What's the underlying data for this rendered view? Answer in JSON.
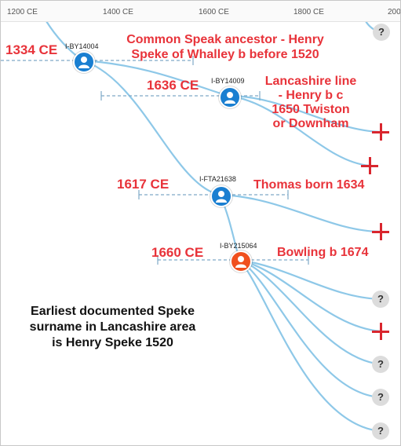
{
  "axis": {
    "ticks": [
      "1200 CE",
      "1400 CE",
      "1600 CE",
      "1800 CE",
      "200"
    ]
  },
  "nodes": [
    {
      "id": "I-BY14004",
      "color": "#1a7fd1"
    },
    {
      "id": "I-BY14009",
      "color": "#1a7fd1"
    },
    {
      "id": "I-FTA21638",
      "color": "#1a7fd1"
    },
    {
      "id": "I-BY215064",
      "color": "#f0501e"
    }
  ],
  "dates": [
    "1334 CE",
    "1636 CE",
    "1617 CE",
    "1660 CE"
  ],
  "annotations": {
    "common_ancestor": [
      "Common Speak ancestor - Henry",
      "Speke of Whalley b before 1520"
    ],
    "lancashire_line": [
      "Lancashire line",
      "- Henry b c",
      "1650 Twiston",
      "or Downham"
    ],
    "thomas": "Thomas born 1634",
    "bowling": "Bowling b 1674"
  },
  "note": "Earliest documented Speke surname in Lancashire area is Henry Speke 1520",
  "leaf_icons": [
    "question-icon",
    "plus-icon"
  ],
  "colors": {
    "accent_text": "#e8333a",
    "branch": "#8ec8e8",
    "dashed": "#7fa9c8",
    "plus": "#d9262e"
  }
}
